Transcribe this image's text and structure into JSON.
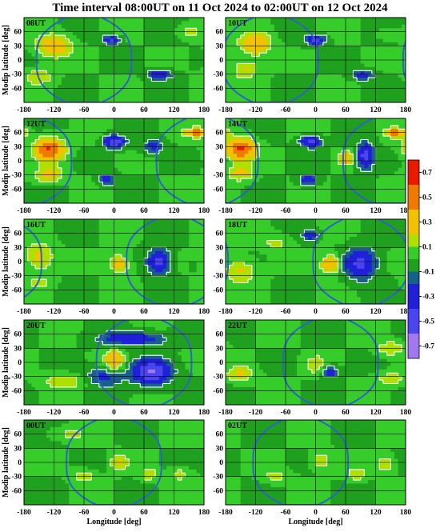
{
  "title": "Time interval 08:00UT on 11 Oct 2024 to 02:00UT on 12 Oct 2024",
  "colors": {
    "scale": [
      "#a178f0",
      "#4a45ee",
      "#2020d8",
      "#16618a",
      "#1fa01f",
      "#36cc2a",
      "#aee000",
      "#f2c200",
      "#f07a00",
      "#e81a00"
    ],
    "contour": "#ffffff",
    "terminator": "#2f63c4",
    "grid": "#000000"
  },
  "chart_data": {
    "type": "heatmap",
    "xlabel": "Longitude [deg]",
    "ylabel": "Modip latitude [deg]",
    "xlim": [
      -180,
      180
    ],
    "ylim": [
      -90,
      90
    ],
    "xticks": [
      -180,
      -120,
      -60,
      0,
      60,
      120,
      180
    ],
    "yticks": [
      -60,
      -30,
      0,
      30,
      60
    ],
    "grid": true,
    "colorbar": {
      "ticks": [
        0.7,
        0.5,
        0.3,
        0.1,
        -0.1,
        -0.3,
        -0.5,
        -0.7
      ],
      "range": [
        -0.8,
        0.8
      ],
      "levels": [
        -0.8,
        -0.6,
        -0.4,
        -0.2,
        -0.1,
        0.0,
        0.1,
        0.2,
        0.4,
        0.6,
        0.8
      ]
    },
    "panels": [
      {
        "label": "08UT",
        "night_center": -60,
        "features": [
          {
            "lon": -120,
            "lat": 30,
            "value": 0.38,
            "wlon": 22,
            "wlat": 16
          },
          {
            "lon": -150,
            "lat": -35,
            "value": 0.18,
            "wlon": 20,
            "wlat": 12
          },
          {
            "lon": -5,
            "lat": 42,
            "value": -0.45,
            "wlon": 12,
            "wlat": 6
          },
          {
            "lon": 90,
            "lat": -32,
            "value": -0.38,
            "wlon": 16,
            "wlat": 7
          },
          {
            "lon": 150,
            "lat": 60,
            "value": 0.15,
            "wlon": 18,
            "wlat": 8
          }
        ]
      },
      {
        "label": "10UT",
        "night_center": -90,
        "features": [
          {
            "lon": -120,
            "lat": 35,
            "value": 0.4,
            "wlon": 20,
            "wlat": 15
          },
          {
            "lon": -140,
            "lat": -20,
            "value": 0.22,
            "wlon": 18,
            "wlat": 14
          },
          {
            "lon": 0,
            "lat": 42,
            "value": -0.45,
            "wlon": 14,
            "wlat": 7
          },
          {
            "lon": 95,
            "lat": -32,
            "value": -0.3,
            "wlon": 15,
            "wlat": 7
          },
          {
            "lon": 150,
            "lat": 55,
            "value": 0.12,
            "wlon": 18,
            "wlat": 8
          }
        ]
      },
      {
        "label": "12UT",
        "night_center": 180,
        "features": [
          {
            "lon": -130,
            "lat": 25,
            "value": 0.6,
            "wlon": 20,
            "wlat": 16
          },
          {
            "lon": -130,
            "lat": -30,
            "value": 0.28,
            "wlon": 18,
            "wlat": 12
          },
          {
            "lon": 0,
            "lat": 40,
            "value": -0.55,
            "wlon": 14,
            "wlat": 9
          },
          {
            "lon": 80,
            "lat": 30,
            "value": -0.25,
            "wlon": 16,
            "wlat": 10
          },
          {
            "lon": -15,
            "lat": -40,
            "value": -0.3,
            "wlon": 12,
            "wlat": 8
          },
          {
            "lon": 165,
            "lat": 60,
            "value": 0.55,
            "wlon": 14,
            "wlat": 6
          }
        ]
      },
      {
        "label": "14UT",
        "night_center": 150,
        "features": [
          {
            "lon": -150,
            "lat": 25,
            "value": 0.62,
            "wlon": 20,
            "wlat": 16
          },
          {
            "lon": -150,
            "lat": -25,
            "value": 0.25,
            "wlon": 18,
            "wlat": 12
          },
          {
            "lon": -10,
            "lat": 40,
            "value": -0.5,
            "wlon": 14,
            "wlat": 8
          },
          {
            "lon": 100,
            "lat": 10,
            "value": -0.5,
            "wlon": 12,
            "wlat": 18
          },
          {
            "lon": 60,
            "lat": 5,
            "value": 0.3,
            "wlon": 10,
            "wlat": 10
          },
          {
            "lon": -15,
            "lat": -40,
            "value": -0.35,
            "wlon": 12,
            "wlat": 8
          },
          {
            "lon": 160,
            "lat": 60,
            "value": 0.5,
            "wlon": 14,
            "wlat": 6
          }
        ]
      },
      {
        "label": "16UT",
        "night_center": 120,
        "features": [
          {
            "lon": -150,
            "lat": 10,
            "value": 0.25,
            "wlon": 20,
            "wlat": 20
          },
          {
            "lon": 10,
            "lat": -5,
            "value": 0.28,
            "wlon": 14,
            "wlat": 14
          },
          {
            "lon": 90,
            "lat": 0,
            "value": -0.45,
            "wlon": 16,
            "wlat": 18
          },
          {
            "lon": -150,
            "lat": -45,
            "value": 0.12,
            "wlon": 18,
            "wlat": 8
          }
        ]
      },
      {
        "label": "18UT",
        "night_center": 90,
        "features": [
          {
            "lon": -150,
            "lat": -20,
            "value": 0.22,
            "wlon": 22,
            "wlat": 18
          },
          {
            "lon": 30,
            "lat": -5,
            "value": 0.45,
            "wlon": 12,
            "wlat": 12
          },
          {
            "lon": 90,
            "lat": -5,
            "value": -0.45,
            "wlon": 22,
            "wlat": 22
          },
          {
            "lon": -10,
            "lat": 55,
            "value": -0.4,
            "wlon": 10,
            "wlat": 6
          },
          {
            "lon": -80,
            "lat": 40,
            "value": 0.14,
            "wlon": 20,
            "wlat": 12
          }
        ]
      },
      {
        "label": "20UT",
        "night_center": 60,
        "features": [
          {
            "lon": 0,
            "lat": 5,
            "value": 0.3,
            "wlon": 14,
            "wlat": 16
          },
          {
            "lon": 75,
            "lat": -20,
            "value": -0.6,
            "wlon": 26,
            "wlat": 18
          },
          {
            "lon": 40,
            "lat": 50,
            "value": -0.35,
            "wlon": 45,
            "wlat": 10
          },
          {
            "lon": -100,
            "lat": -40,
            "value": 0.18,
            "wlon": 30,
            "wlat": 10
          },
          {
            "lon": -20,
            "lat": -30,
            "value": -0.25,
            "wlon": 25,
            "wlat": 14
          }
        ]
      },
      {
        "label": "22UT",
        "night_center": 30,
        "features": [
          {
            "lon": 0,
            "lat": -5,
            "value": 0.16,
            "wlon": 14,
            "wlat": 14
          },
          {
            "lon": 30,
            "lat": -20,
            "value": -0.35,
            "wlon": 10,
            "wlat": 8
          },
          {
            "lon": -150,
            "lat": -25,
            "value": 0.22,
            "wlon": 18,
            "wlat": 12
          },
          {
            "lon": 150,
            "lat": 30,
            "value": 0.2,
            "wlon": 18,
            "wlat": 10
          },
          {
            "lon": 150,
            "lat": -35,
            "value": 0.18,
            "wlon": 18,
            "wlat": 10
          }
        ]
      },
      {
        "label": "00UT",
        "night_center": 0,
        "features": [
          {
            "lon": 10,
            "lat": 0,
            "value": 0.22,
            "wlon": 12,
            "wlat": 12
          },
          {
            "lon": 70,
            "lat": -25,
            "value": 0.18,
            "wlon": 12,
            "wlat": 10
          },
          {
            "lon": 130,
            "lat": -25,
            "value": 0.15,
            "wlon": 14,
            "wlat": 10
          },
          {
            "lon": -60,
            "lat": -30,
            "value": 0.15,
            "wlon": 16,
            "wlat": 10
          },
          {
            "lon": -90,
            "lat": 60,
            "value": 0.12,
            "wlon": 30,
            "wlat": 8
          }
        ]
      },
      {
        "label": "02UT",
        "night_center": -30,
        "features": [
          {
            "lon": 10,
            "lat": 5,
            "value": 0.2,
            "wlon": 14,
            "wlat": 12
          },
          {
            "lon": 80,
            "lat": -25,
            "value": 0.18,
            "wlon": 14,
            "wlat": 10
          },
          {
            "lon": 140,
            "lat": -5,
            "value": 0.18,
            "wlon": 14,
            "wlat": 12
          },
          {
            "lon": -80,
            "lat": -30,
            "value": 0.14,
            "wlon": 18,
            "wlat": 10
          }
        ]
      }
    ]
  }
}
